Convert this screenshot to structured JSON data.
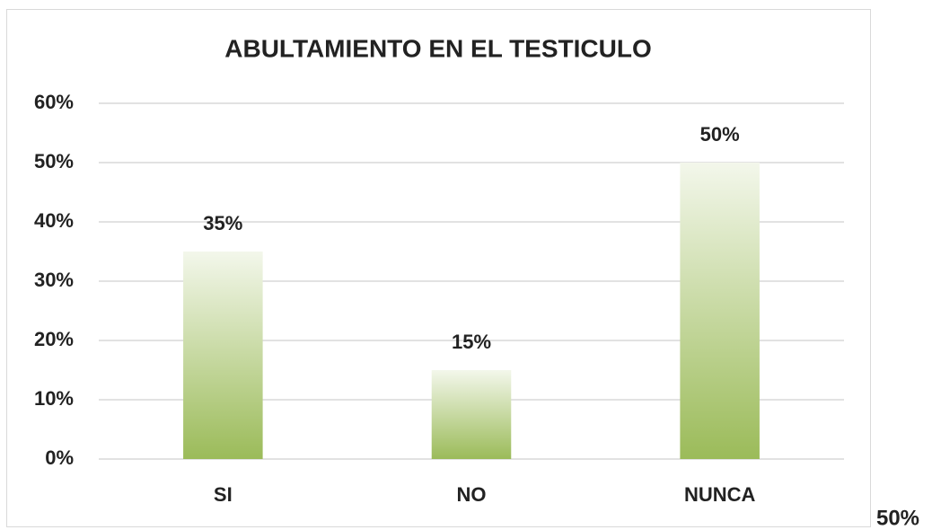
{
  "chart_data": {
    "type": "bar",
    "title": "ABULTAMIENTO EN EL TESTICULO",
    "categories": [
      "SI",
      "NO",
      "NUNCA"
    ],
    "values": [
      35,
      15,
      50
    ],
    "value_labels": [
      "35%",
      "15%",
      "50%"
    ],
    "color": "#9bbb59",
    "ylim": [
      0,
      60
    ],
    "yticks": [
      {
        "value": 0,
        "label": "0%"
      },
      {
        "value": 10,
        "label": "10%"
      },
      {
        "value": 20,
        "label": "20%"
      },
      {
        "value": 30,
        "label": "30%"
      },
      {
        "value": 40,
        "label": "40%"
      },
      {
        "value": 50,
        "label": "50%"
      },
      {
        "value": 60,
        "label": "60%"
      }
    ],
    "grid": true,
    "annotations": [
      "50%"
    ]
  }
}
